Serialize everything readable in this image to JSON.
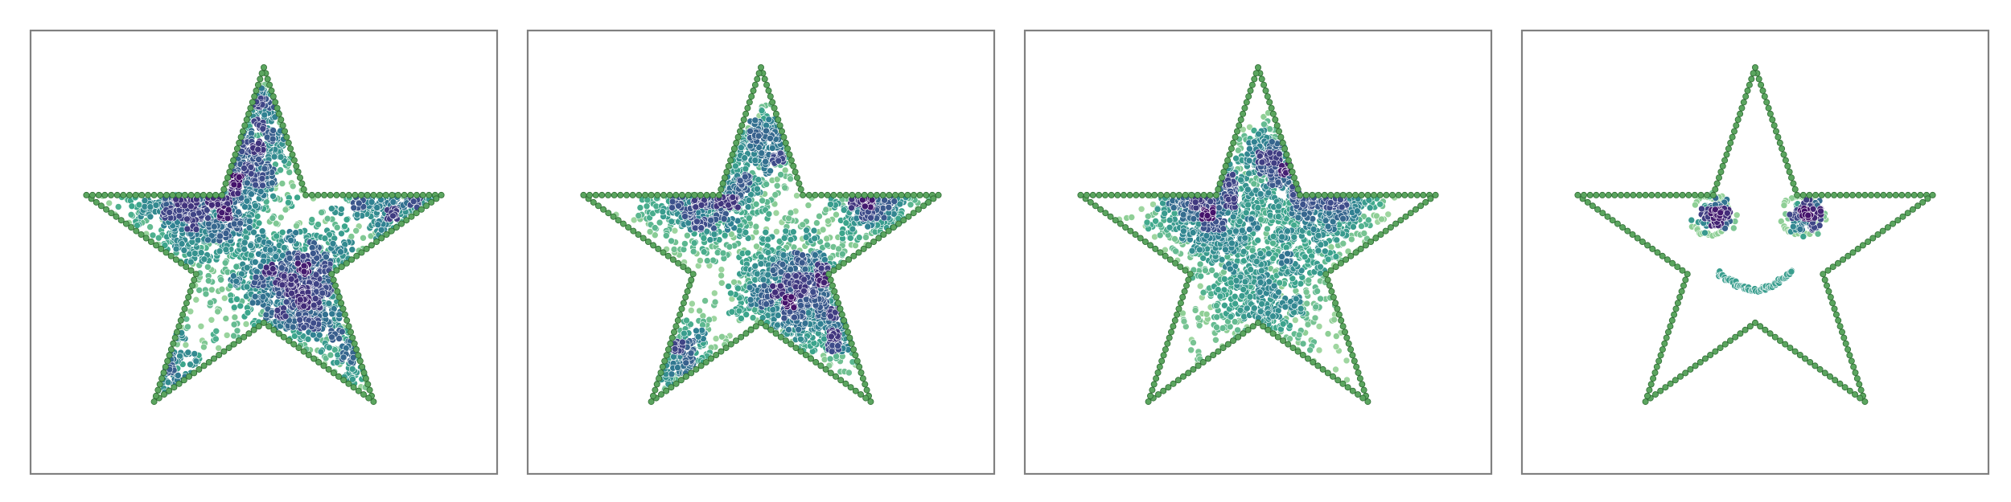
{
  "figure": {
    "panel_count": 4,
    "axes_visible": false,
    "grid": false,
    "legend": "none",
    "colors": {
      "frame": "#808080",
      "outline_fill": "#5ba55f",
      "outline_edge": "#2e6b33",
      "colormap": [
        "#45126b",
        "#3e4c8a",
        "#2f7f92",
        "#3da88c",
        "#8fcf96",
        "#bfe5b5"
      ]
    }
  },
  "chart_data": [
    {
      "type": "scatter",
      "panel": 1,
      "xlim": [
        -1.25,
        1.25
      ],
      "ylim": [
        -1.2,
        1.2
      ],
      "outline": "star",
      "outline_point_count": 220,
      "samples": 2400,
      "clusters": [
        {
          "x": -0.34,
          "y": 0.3,
          "spread": 0.2,
          "weight": 0.32
        },
        {
          "x": 0.2,
          "y": -0.2,
          "spread": 0.18,
          "weight": 0.28
        },
        {
          "x": 0.72,
          "y": 0.3,
          "spread": 0.15,
          "weight": 0.14
        },
        {
          "x": -0.55,
          "y": -0.62,
          "spread": 0.14,
          "weight": 0.1
        },
        {
          "x": -0.02,
          "y": 0.55,
          "spread": 0.12,
          "weight": 0.08
        },
        {
          "x": 0.5,
          "y": -0.55,
          "spread": 0.1,
          "weight": 0.05
        },
        {
          "x": 0.0,
          "y": 0.82,
          "spread": 0.06,
          "weight": 0.03
        }
      ]
    },
    {
      "type": "scatter",
      "panel": 2,
      "xlim": [
        -1.25,
        1.25
      ],
      "ylim": [
        -1.2,
        1.2
      ],
      "outline": "star",
      "outline_point_count": 220,
      "samples": 2200,
      "clusters": [
        {
          "x": -0.3,
          "y": 0.32,
          "spread": 0.16,
          "weight": 0.3
        },
        {
          "x": 0.2,
          "y": -0.22,
          "spread": 0.17,
          "weight": 0.3
        },
        {
          "x": 0.62,
          "y": 0.3,
          "spread": 0.13,
          "weight": 0.16
        },
        {
          "x": -0.45,
          "y": -0.55,
          "spread": 0.13,
          "weight": 0.1
        },
        {
          "x": 0.03,
          "y": 0.58,
          "spread": 0.1,
          "weight": 0.09
        },
        {
          "x": 0.45,
          "y": -0.45,
          "spread": 0.09,
          "weight": 0.05
        }
      ]
    },
    {
      "type": "scatter",
      "panel": 3,
      "xlim": [
        -1.25,
        1.25
      ],
      "ylim": [
        -1.2,
        1.2
      ],
      "outline": "star",
      "outline_point_count": 220,
      "samples": 2000,
      "clusters": [
        {
          "x": -0.28,
          "y": 0.26,
          "spread": 0.15,
          "weight": 0.3
        },
        {
          "x": 0.35,
          "y": 0.28,
          "spread": 0.14,
          "weight": 0.25
        },
        {
          "x": 0.05,
          "y": -0.2,
          "spread": 0.22,
          "weight": 0.3
        },
        {
          "x": 0.1,
          "y": 0.5,
          "spread": 0.11,
          "weight": 0.15
        }
      ]
    },
    {
      "type": "scatter",
      "panel": 4,
      "xlim": [
        -1.25,
        1.25
      ],
      "ylim": [
        -1.2,
        1.2
      ],
      "outline": "star",
      "outline_point_count": 220,
      "features": {
        "left_eye": {
          "x": -0.24,
          "y": 0.2,
          "ring_radius": 0.12,
          "core_spread": 0.045
        },
        "right_eye": {
          "x": 0.24,
          "y": 0.2,
          "ring_radius": 0.12,
          "core_spread": 0.045
        },
        "smile": {
          "x": 0.0,
          "y": -0.1,
          "x_from": -0.2,
          "x_to": 0.2,
          "depth": 0.1
        }
      },
      "samples": 360
    }
  ]
}
